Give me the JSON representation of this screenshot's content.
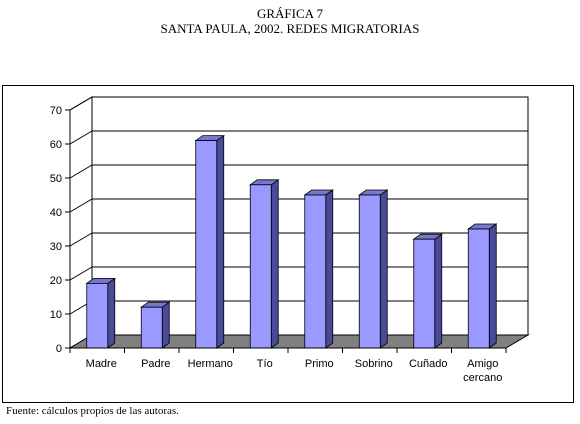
{
  "page": {
    "heading": "GRÁFICA 7",
    "subheading": "SANTA PAULA, 2002. REDES MIGRATORIAS",
    "source": "Fuente: cálculos propios de las autoras."
  },
  "chart_data": {
    "type": "bar",
    "title": "",
    "xlabel": "",
    "ylabel": "",
    "categories": [
      "Madre",
      "Padre",
      "Hermano",
      "Tío",
      "Primo",
      "Sobrino",
      "Cuñado",
      "Amigo cercano"
    ],
    "category_lines": [
      [
        "Madre"
      ],
      [
        "Padre"
      ],
      [
        "Hermano"
      ],
      [
        "Tío"
      ],
      [
        "Primo"
      ],
      [
        "Sobrino"
      ],
      [
        "Cuñado"
      ],
      [
        "Amigo",
        "cercano"
      ]
    ],
    "values": [
      19,
      12,
      61,
      48,
      45,
      45,
      32,
      35
    ],
    "ylim": [
      0,
      70
    ],
    "yticks": [
      0,
      10,
      20,
      30,
      40,
      50,
      60,
      70
    ],
    "grid": true,
    "legend": "none",
    "colors": {
      "bar_front": "#9999FF",
      "bar_side": "#4A4A9A",
      "bar_top": "#7777CC",
      "floor": "#808080",
      "wall": "#FFFFFF",
      "gridline": "#000000"
    }
  }
}
